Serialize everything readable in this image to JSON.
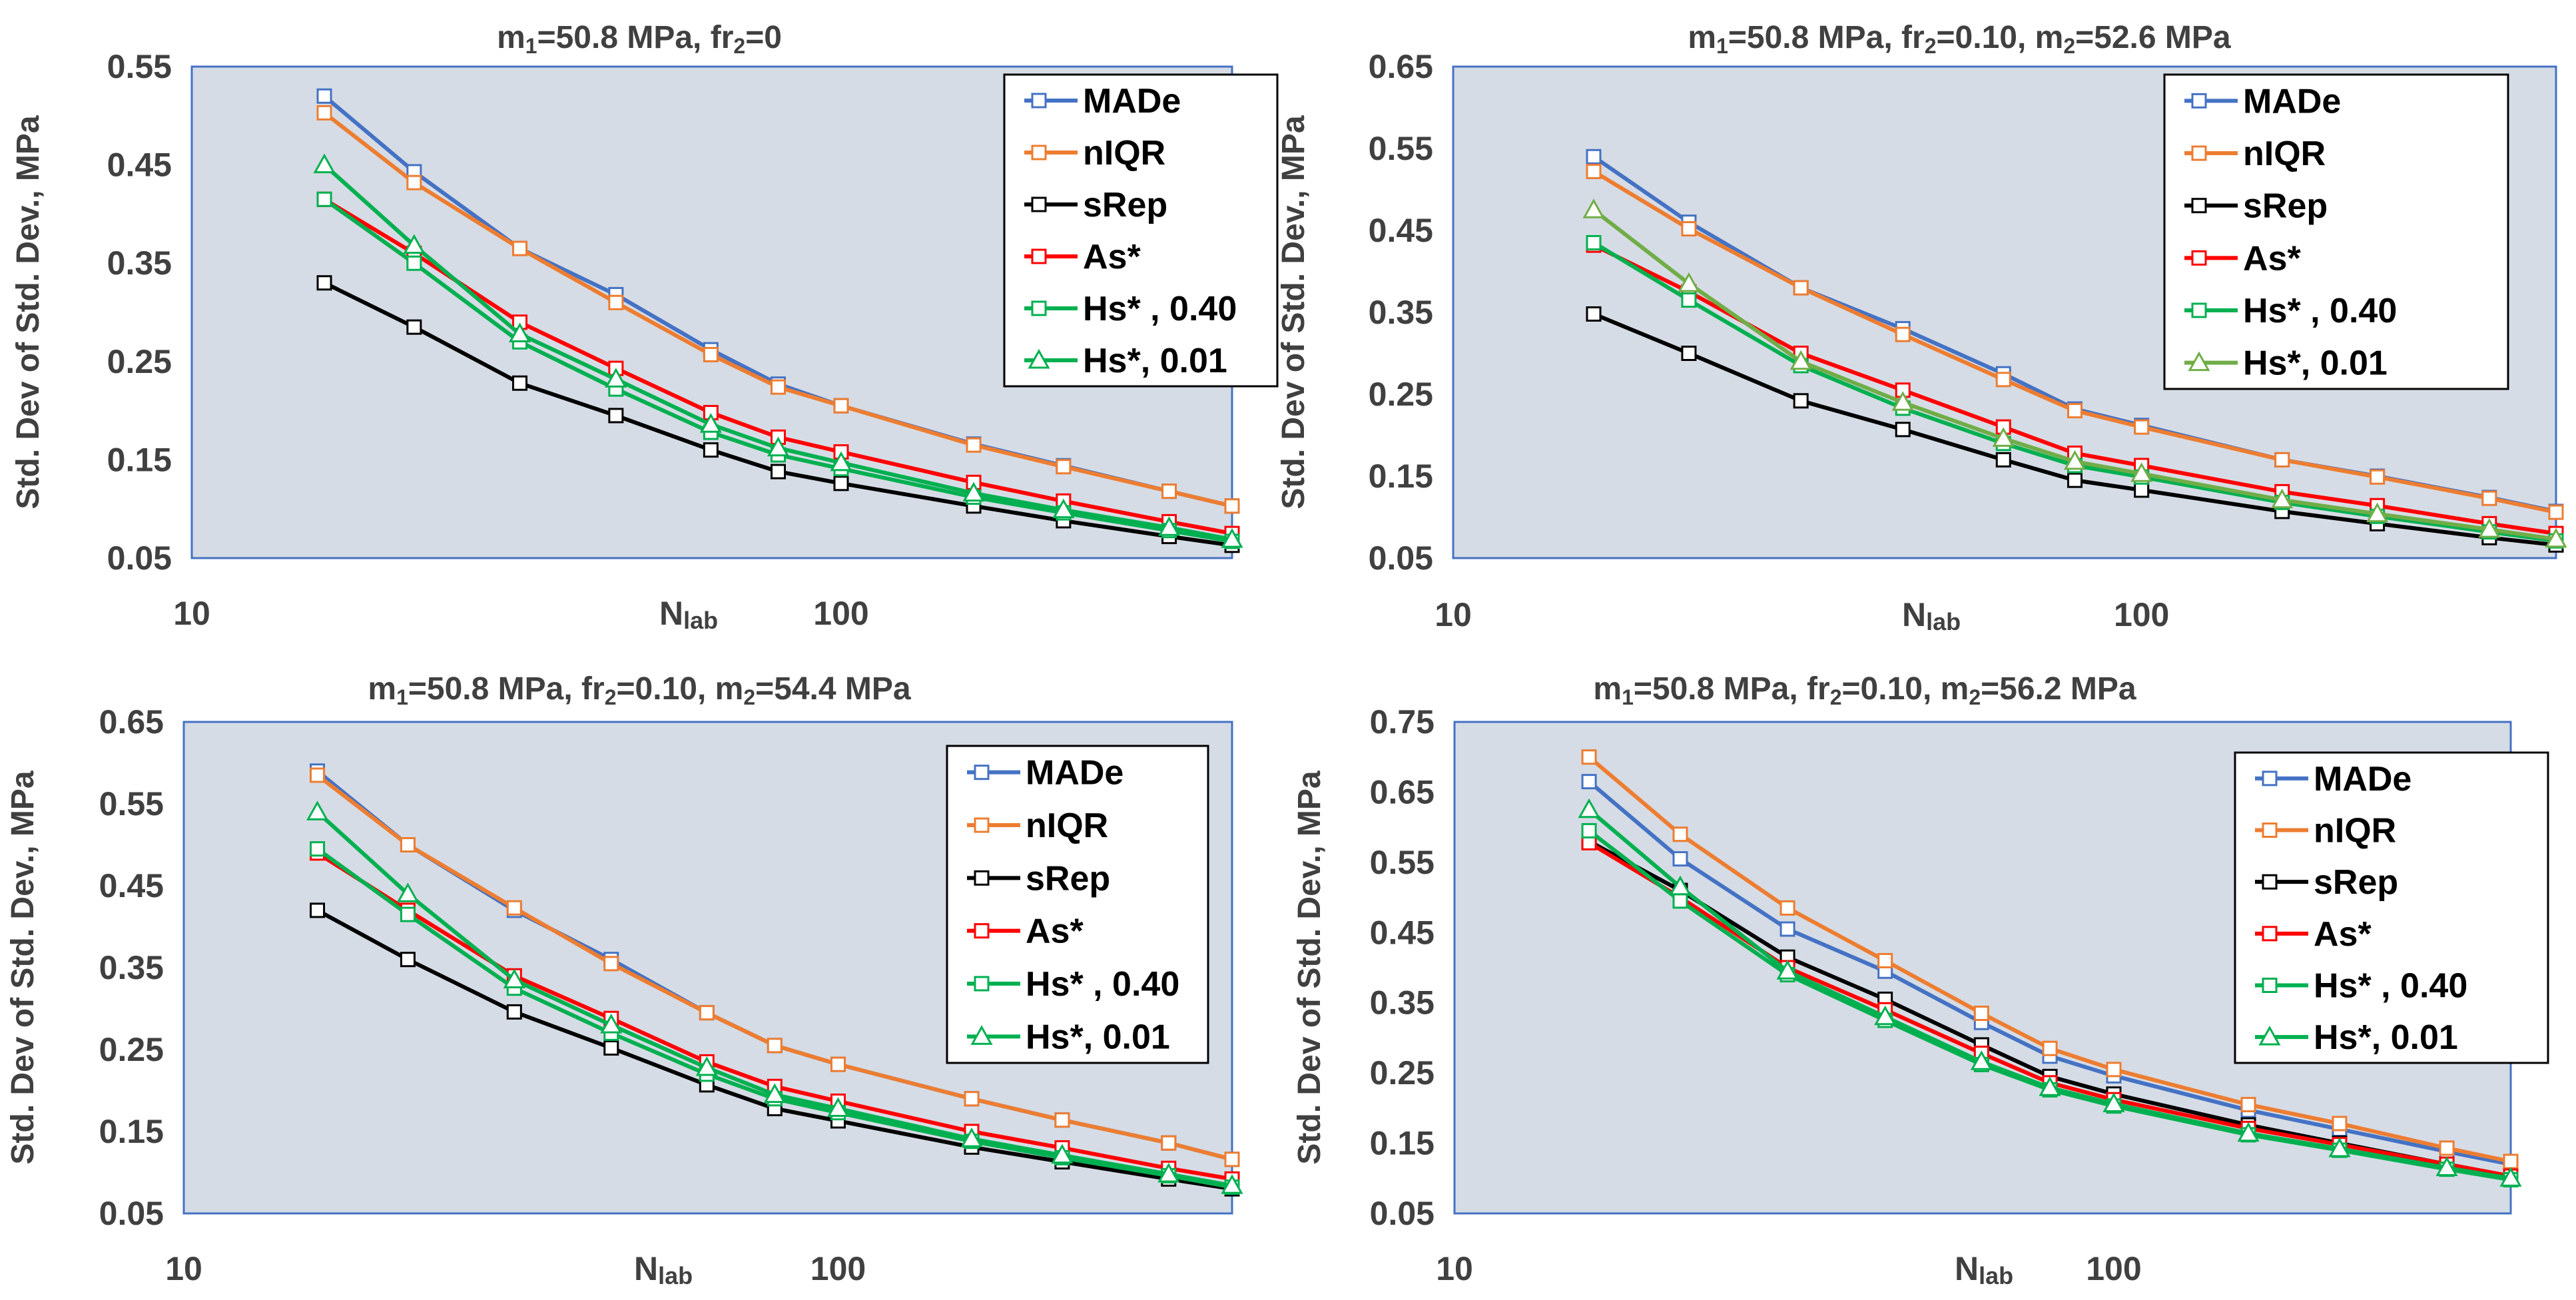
{
  "chart_data": [
    {
      "type": "line",
      "title_parts": [
        "m",
        "1",
        "=50.8 MPa, fr",
        "2",
        "=0"
      ],
      "xlabel_main": "N",
      "xlabel_sub": "lab",
      "ylabel": "Std. Dev of Std. Dev., MPa",
      "xscale": "log",
      "xlim": [
        10,
        400
      ],
      "x_tick_values": [
        10,
        100
      ],
      "x_tick_labels": [
        "10",
        "100"
      ],
      "ylim": [
        0.05,
        0.55
      ],
      "y_tick_values": [
        0.05,
        0.15,
        0.25,
        0.35,
        0.45,
        0.55
      ],
      "y_tick_labels": [
        "0.05",
        "0.15",
        "0.25",
        "0.35",
        "0.45",
        "0.55"
      ],
      "legend_position": "top-right",
      "x": [
        16,
        22,
        32,
        45,
        63,
        80,
        100,
        160,
        220,
        320,
        400
      ],
      "series": [
        {
          "name": "MADe",
          "color": "#4472C4",
          "marker": "square",
          "values": [
            0.52,
            0.443,
            0.365,
            0.318,
            0.262,
            0.227,
            0.205,
            0.166,
            0.144,
            0.118,
            0.103
          ]
        },
        {
          "name": "nIQR",
          "color": "#ED7D31",
          "marker": "square",
          "values": [
            0.503,
            0.432,
            0.365,
            0.31,
            0.257,
            0.224,
            0.205,
            0.165,
            0.143,
            0.118,
            0.103
          ]
        },
        {
          "name": "sRep",
          "color": "#000000",
          "marker": "square",
          "values": [
            0.33,
            0.285,
            0.228,
            0.195,
            0.16,
            0.138,
            0.126,
            0.103,
            0.088,
            0.072,
            0.063
          ]
        },
        {
          "name": "As*",
          "color": "#FF0000",
          "marker": "square",
          "values": [
            0.415,
            0.36,
            0.29,
            0.243,
            0.198,
            0.173,
            0.158,
            0.127,
            0.108,
            0.087,
            0.075
          ]
        },
        {
          "name": "Hs* , 0.40",
          "color": "#00B050",
          "marker": "square",
          "values": [
            0.415,
            0.35,
            0.27,
            0.222,
            0.178,
            0.155,
            0.141,
            0.112,
            0.096,
            0.078,
            0.067
          ]
        },
        {
          "name": "Hs*, 0.01",
          "color": "#00B050",
          "marker": "triangle",
          "values": [
            0.45,
            0.368,
            0.278,
            0.232,
            0.186,
            0.162,
            0.147,
            0.116,
            0.099,
            0.081,
            0.069
          ]
        }
      ]
    },
    {
      "type": "line",
      "title_parts": [
        "m",
        "1",
        "=50.8 MPa, fr",
        "2",
        "=0.10, m",
        "2",
        "=52.6 MPa"
      ],
      "xlabel_main": "N",
      "xlabel_sub": "lab",
      "ylabel": "Std. Dev of Std. Dev., MPa",
      "xscale": "log",
      "xlim": [
        10,
        400
      ],
      "x_tick_values": [
        10,
        100
      ],
      "x_tick_labels": [
        "10",
        "100"
      ],
      "ylim": [
        0.05,
        0.65
      ],
      "y_tick_values": [
        0.05,
        0.15,
        0.25,
        0.35,
        0.45,
        0.55,
        0.65
      ],
      "y_tick_labels": [
        "0.05",
        "0.15",
        "0.25",
        "0.35",
        "0.45",
        "0.55",
        "0.65"
      ],
      "legend_position": "top-right",
      "x": [
        16,
        22,
        32,
        45,
        63,
        80,
        100,
        160,
        220,
        320,
        400
      ],
      "series": [
        {
          "name": "MADe",
          "color": "#4472C4",
          "marker": "square",
          "values": [
            0.54,
            0.46,
            0.38,
            0.33,
            0.275,
            0.232,
            0.212,
            0.17,
            0.15,
            0.124,
            0.107
          ]
        },
        {
          "name": "nIQR",
          "color": "#ED7D31",
          "marker": "square",
          "values": [
            0.522,
            0.452,
            0.38,
            0.323,
            0.268,
            0.23,
            0.21,
            0.17,
            0.149,
            0.123,
            0.106
          ]
        },
        {
          "name": "sRep",
          "color": "#000000",
          "marker": "square",
          "values": [
            0.348,
            0.3,
            0.242,
            0.207,
            0.17,
            0.145,
            0.133,
            0.107,
            0.092,
            0.075,
            0.066
          ]
        },
        {
          "name": "As*",
          "color": "#FF0000",
          "marker": "square",
          "values": [
            0.432,
            0.375,
            0.3,
            0.255,
            0.21,
            0.178,
            0.163,
            0.131,
            0.114,
            0.092,
            0.08
          ]
        },
        {
          "name": "Hs* , 0.40",
          "color": "#00B050",
          "marker": "square",
          "values": [
            0.435,
            0.365,
            0.285,
            0.233,
            0.19,
            0.163,
            0.149,
            0.118,
            0.101,
            0.082,
            0.071
          ]
        },
        {
          "name": "Hs*, 0.01",
          "color": "#70AD47",
          "marker": "triangle",
          "values": [
            0.475,
            0.385,
            0.29,
            0.24,
            0.196,
            0.168,
            0.153,
            0.121,
            0.104,
            0.085,
            0.073
          ]
        }
      ]
    },
    {
      "type": "line",
      "title_parts": [
        "m",
        "1",
        "=50.8 MPa, fr",
        "2",
        "=0.10, m",
        "2",
        "=54.4 MPa"
      ],
      "xlabel_main": "N",
      "xlabel_sub": "lab",
      "ylabel": "Std. Dev of Std. Dev., MPa",
      "xscale": "log",
      "xlim": [
        10,
        400
      ],
      "x_tick_values": [
        10,
        100
      ],
      "x_tick_labels": [
        "10",
        "100"
      ],
      "ylim": [
        0.05,
        0.65
      ],
      "y_tick_values": [
        0.05,
        0.15,
        0.25,
        0.35,
        0.45,
        0.55,
        0.65
      ],
      "y_tick_labels": [
        "0.05",
        "0.15",
        "0.25",
        "0.35",
        "0.45",
        "0.55",
        "0.65"
      ],
      "legend_position": "top-right",
      "x": [
        16,
        22,
        32,
        45,
        63,
        80,
        100,
        160,
        220,
        320,
        400
      ],
      "series": [
        {
          "name": "MADe",
          "color": "#4472C4",
          "marker": "square",
          "values": [
            0.59,
            0.5,
            0.42,
            0.36,
            0.295,
            0.255,
            0.232,
            0.19,
            0.164,
            0.136,
            0.116
          ]
        },
        {
          "name": "nIQR",
          "color": "#ED7D31",
          "marker": "square",
          "values": [
            0.585,
            0.5,
            0.423,
            0.355,
            0.295,
            0.255,
            0.232,
            0.19,
            0.164,
            0.136,
            0.116
          ]
        },
        {
          "name": "sRep",
          "color": "#000000",
          "marker": "square",
          "values": [
            0.42,
            0.36,
            0.296,
            0.252,
            0.207,
            0.178,
            0.163,
            0.131,
            0.113,
            0.092,
            0.08
          ]
        },
        {
          "name": "As*",
          "color": "#FF0000",
          "marker": "square",
          "values": [
            0.49,
            0.42,
            0.34,
            0.288,
            0.235,
            0.205,
            0.187,
            0.15,
            0.13,
            0.105,
            0.092
          ]
        },
        {
          "name": "Hs* , 0.40",
          "color": "#00B050",
          "marker": "square",
          "values": [
            0.495,
            0.415,
            0.325,
            0.27,
            0.22,
            0.19,
            0.173,
            0.138,
            0.118,
            0.096,
            0.082
          ]
        },
        {
          "name": "Hs*, 0.01",
          "color": "#00B050",
          "marker": "triangle",
          "values": [
            0.54,
            0.44,
            0.335,
            0.28,
            0.228,
            0.195,
            0.178,
            0.141,
            0.121,
            0.098,
            0.084
          ]
        }
      ]
    },
    {
      "type": "line",
      "title_parts": [
        "m",
        "1",
        "=50.8 MPa, fr",
        "2",
        "=0.10, m",
        "2",
        "=56.2 MPa"
      ],
      "xlabel_main": "N",
      "xlabel_sub": "lab",
      "ylabel": "Std. Dev of Std. Dev.,  MPa",
      "xscale": "log",
      "xlim": [
        10,
        400
      ],
      "x_tick_values": [
        10,
        100
      ],
      "x_tick_labels": [
        "10",
        "100"
      ],
      "ylim": [
        0.05,
        0.75
      ],
      "y_tick_values": [
        0.05,
        0.15,
        0.25,
        0.35,
        0.45,
        0.55,
        0.65,
        0.75
      ],
      "y_tick_labels": [
        "0.05",
        "0.15",
        "0.25",
        "0.35",
        "0.45",
        "0.55",
        "0.65",
        "0.75"
      ],
      "legend_position": "top-right",
      "x": [
        16,
        22,
        32,
        45,
        63,
        80,
        100,
        160,
        220,
        320,
        400
      ],
      "series": [
        {
          "name": "MADe",
          "color": "#4472C4",
          "marker": "square",
          "values": [
            0.665,
            0.555,
            0.455,
            0.395,
            0.322,
            0.274,
            0.246,
            0.197,
            0.17,
            0.138,
            0.12
          ]
        },
        {
          "name": "nIQR",
          "color": "#ED7D31",
          "marker": "square",
          "values": [
            0.7,
            0.59,
            0.485,
            0.41,
            0.335,
            0.285,
            0.255,
            0.205,
            0.178,
            0.143,
            0.124
          ]
        },
        {
          "name": "sRep",
          "color": "#000000",
          "marker": "square",
          "values": [
            0.58,
            0.51,
            0.415,
            0.355,
            0.29,
            0.245,
            0.22,
            0.176,
            0.15,
            0.12,
            0.103
          ]
        },
        {
          "name": "As*",
          "color": "#FF0000",
          "marker": "square",
          "values": [
            0.578,
            0.5,
            0.4,
            0.34,
            0.278,
            0.236,
            0.212,
            0.171,
            0.148,
            0.12,
            0.103
          ]
        },
        {
          "name": "Hs* , 0.40",
          "color": "#00B050",
          "marker": "square",
          "values": [
            0.595,
            0.495,
            0.39,
            0.325,
            0.262,
            0.226,
            0.203,
            0.162,
            0.14,
            0.113,
            0.098
          ]
        },
        {
          "name": "Hs*, 0.01",
          "color": "#00B050",
          "marker": "triangle",
          "values": [
            0.625,
            0.515,
            0.395,
            0.33,
            0.266,
            0.229,
            0.206,
            0.164,
            0.142,
            0.115,
            0.1
          ]
        }
      ]
    }
  ]
}
